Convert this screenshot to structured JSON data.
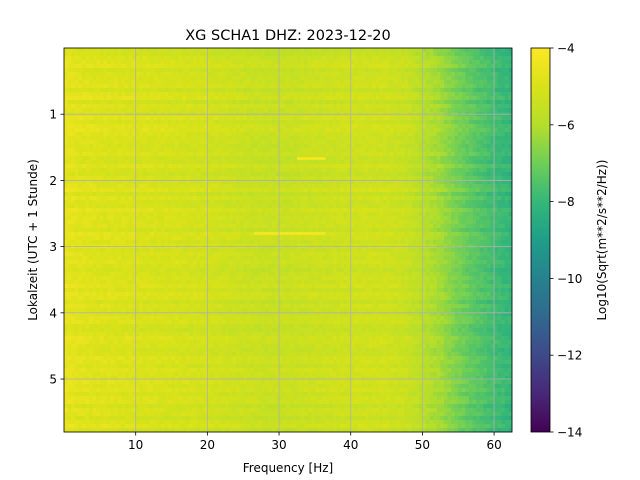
{
  "chart_data": {
    "type": "heatmap",
    "title": "XG SCHA1  DHZ: 2023-12-20",
    "xlabel": "Frequency [Hz]",
    "ylabel": "Lokalzeit (UTC + 1 Stunde)",
    "xlim": [
      0,
      62.5
    ],
    "ylim": [
      5.8,
      0
    ],
    "xticks": [
      10,
      20,
      30,
      40,
      50,
      60
    ],
    "yticks": [
      1,
      2,
      3,
      4,
      5
    ],
    "grid": true,
    "colormap": "viridis",
    "colorbar": {
      "label": "Log10(Sqrt(m**2/s**2/Hz))",
      "range": [
        -14,
        -4
      ],
      "ticks": [
        -4,
        -6,
        -8,
        -10,
        -12,
        -14
      ],
      "tick_labels": [
        "−4",
        "−6",
        "−8",
        "−10",
        "−12",
        "−14"
      ]
    },
    "frequency_profile": {
      "frequency_hz": [
        0,
        2,
        5,
        10,
        15,
        20,
        25,
        28,
        30,
        35,
        40,
        45,
        48,
        50,
        52,
        55,
        57,
        60,
        62.5
      ],
      "log10_amplitude": [
        -4.6,
        -4.8,
        -4.9,
        -5.0,
        -5.1,
        -5.2,
        -5.4,
        -5.5,
        -5.5,
        -5.4,
        -5.3,
        -5.3,
        -5.5,
        -5.9,
        -6.2,
        -6.9,
        -7.3,
        -7.8,
        -8.1
      ]
    },
    "features": [
      {
        "time_h": 1.67,
        "frequency_hz": [
          32.5,
          36.5
        ],
        "log10_amplitude": -4.3
      },
      {
        "time_h": 2.8,
        "frequency_hz": [
          26.5,
          36.5
        ],
        "log10_amplitude": -4.3
      }
    ]
  }
}
